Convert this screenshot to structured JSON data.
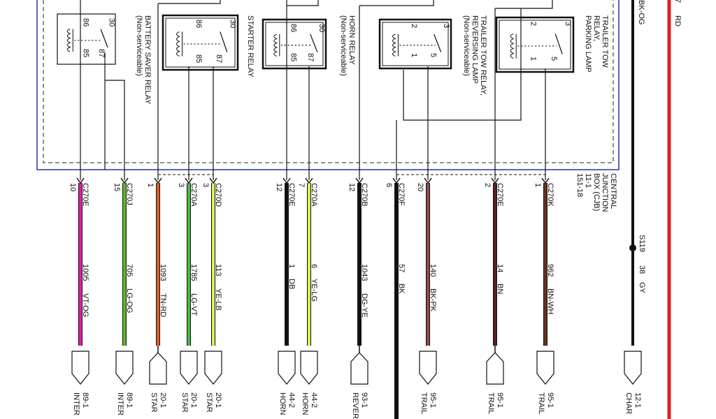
{
  "top_labels": {
    "pin": "7",
    "wire_a": "BK-OG",
    "wire_b": "RD"
  },
  "relays": [
    {
      "title": [
        "BATTERY SAVER RELAY",
        "(Non-serviceable)"
      ],
      "pins": [
        "86",
        "30",
        "85",
        "87"
      ]
    },
    {
      "title": [
        "STARTER RELAY"
      ],
      "pins": [
        "86",
        "30",
        "85",
        "87"
      ]
    },
    {
      "title": [
        "HORN RELAY",
        "(Non-serviceable)"
      ],
      "pins": [
        "86",
        "30",
        "85",
        "87"
      ]
    },
    {
      "title": [
        "TRAILER TOW RELAY,",
        "REVERSING LAMP",
        "(Non-serviceable)"
      ],
      "pins": [
        "2",
        "3",
        "1",
        "5"
      ]
    },
    {
      "title": [
        "TRAILER TOW",
        "RELAY,",
        "PARKING LAMP"
      ],
      "pins": [
        "2",
        "3",
        "1",
        "5"
      ]
    }
  ],
  "junction_box": [
    "CENTRAL",
    "JUNCTION",
    "BOX (CJB)",
    "11-1",
    "151-18"
  ],
  "wires": [
    {
      "pin": "10",
      "connector": "C270E",
      "circuit": "1005",
      "color": "VT-OG",
      "destination": [
        "89-1",
        "INTER"
      ]
    },
    {
      "pin": "15",
      "connector": "C270J",
      "circuit": "705",
      "color": "LG-OG",
      "destination": [
        "89-1",
        "INTER"
      ]
    },
    {
      "pin": "1",
      "circuit": "1093",
      "color": "TN-RD",
      "destination": [
        "20-1",
        "STAR"
      ]
    },
    {
      "pin": "3",
      "connector": "C270A",
      "circuit": "1785",
      "color": "LG-VT",
      "destination": [
        "20-1",
        "STAR"
      ]
    },
    {
      "pin": "3",
      "connector": "C270D",
      "circuit": "113",
      "color": "YE-LB",
      "destination": [
        "20-1",
        "STAR"
      ]
    },
    {
      "pin": "12",
      "connector": "C270E",
      "circuit": "1",
      "color": "DB",
      "destination": [
        "44-2",
        "HORN"
      ]
    },
    {
      "pin": "7",
      "connector": "C270A",
      "circuit": "6",
      "color": "YE-LG",
      "destination": [
        "44-2",
        "HORN"
      ]
    },
    {
      "pin": "12",
      "connector": "C270B",
      "circuit": "1043",
      "color": "DG-YE",
      "destination": [
        "93-1",
        "REVER"
      ]
    },
    {
      "pin": "6",
      "connector": "C270F",
      "circuit": "57",
      "color": "BK"
    },
    {
      "pin": "20",
      "circuit": "140",
      "color": "BK-PK",
      "destination": [
        "95-1",
        "TRAIL"
      ]
    },
    {
      "pin": "2",
      "connector": "C270E",
      "circuit": "14",
      "color": "BN",
      "destination": [
        "95-1",
        "TRAIL"
      ]
    },
    {
      "pin": "1",
      "connector": "C270K",
      "circuit": "962",
      "color": "BN-WH",
      "destination": [
        "95-1",
        "TRAIL"
      ]
    }
  ],
  "splice": {
    "id": "S119",
    "circuit": "38",
    "color": "GY",
    "destination": [
      "12-1",
      "CHAR"
    ]
  }
}
